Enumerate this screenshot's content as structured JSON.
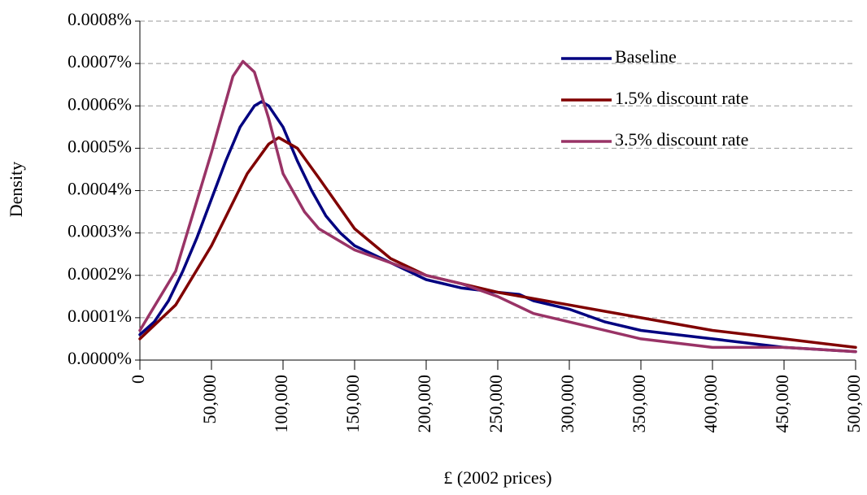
{
  "chart_data": {
    "type": "line",
    "x_label": "£ (2002 prices)",
    "y_label": "Density",
    "xlim": [
      0,
      500000
    ],
    "ylim": [
      0,
      0.0008
    ],
    "xticks": [
      0,
      {
        "value": 50000,
        "label": "50,000"
      },
      {
        "value": 100000,
        "label": "100,000"
      },
      {
        "value": 150000,
        "label": "150,000"
      },
      {
        "value": 200000,
        "label": "200,000"
      },
      {
        "value": 250000,
        "label": "250,000"
      },
      {
        "value": 300000,
        "label": "300,000"
      },
      {
        "value": 350000,
        "label": "350,000"
      },
      {
        "value": 400000,
        "label": "400,000"
      },
      {
        "value": 450000,
        "label": "450,000"
      },
      {
        "value": 500000,
        "label": "500,000"
      }
    ],
    "yticks": [
      {
        "value": 0,
        "label": "0.0000%"
      },
      {
        "value": 0.0001,
        "label": "0.0001%"
      },
      {
        "value": 0.0002,
        "label": "0.0002%"
      },
      {
        "value": 0.0003,
        "label": "0.0003%"
      },
      {
        "value": 0.0004,
        "label": "0.0004%"
      },
      {
        "value": 0.0005,
        "label": "0.0005%"
      },
      {
        "value": 0.0006,
        "label": "0.0006%"
      },
      {
        "value": 0.0007,
        "label": "0.0007%"
      },
      {
        "value": 0.0008,
        "label": "0.0008%"
      }
    ],
    "grid": true,
    "legend": "top-right",
    "series": [
      {
        "name": "Baseline",
        "color": "#000080",
        "x": [
          0,
          10000,
          20000,
          30000,
          40000,
          50000,
          60000,
          70000,
          80000,
          85000,
          90000,
          100000,
          110000,
          120000,
          130000,
          140000,
          150000,
          175000,
          200000,
          225000,
          250000,
          265000,
          275000,
          300000,
          325000,
          350000,
          375000,
          400000,
          450000,
          500000
        ],
        "values": [
          6e-05,
          9e-05,
          0.00014,
          0.00021,
          0.00029,
          0.00038,
          0.00047,
          0.00055,
          0.0006,
          0.00061,
          0.0006,
          0.00055,
          0.00047,
          0.0004,
          0.00034,
          0.0003,
          0.00027,
          0.00023,
          0.00019,
          0.00017,
          0.00016,
          0.000155,
          0.00014,
          0.00012,
          9e-05,
          7e-05,
          6e-05,
          5e-05,
          3e-05,
          2e-05
        ]
      },
      {
        "name": "1.5% discount rate",
        "color": "#800000",
        "x": [
          0,
          25000,
          50000,
          75000,
          90000,
          97000,
          110000,
          125000,
          150000,
          175000,
          200000,
          250000,
          300000,
          350000,
          400000,
          450000,
          500000
        ],
        "values": [
          5e-05,
          0.00013,
          0.00027,
          0.00044,
          0.00051,
          0.000525,
          0.0005,
          0.00043,
          0.00031,
          0.00024,
          0.0002,
          0.00016,
          0.00013,
          0.0001,
          7e-05,
          5e-05,
          3e-05
        ]
      },
      {
        "name": "3.5% discount rate",
        "color": "#993366",
        "x": [
          0,
          25000,
          50000,
          65000,
          72000,
          80000,
          90000,
          100000,
          115000,
          125000,
          150000,
          200000,
          225000,
          250000,
          275000,
          300000,
          350000,
          400000,
          450000,
          500000
        ],
        "values": [
          7e-05,
          0.00021,
          0.00049,
          0.00067,
          0.000705,
          0.00068,
          0.00057,
          0.00044,
          0.00035,
          0.00031,
          0.00026,
          0.0002,
          0.00018,
          0.00015,
          0.00011,
          9e-05,
          5e-05,
          3e-05,
          3e-05,
          2e-05
        ]
      }
    ]
  }
}
